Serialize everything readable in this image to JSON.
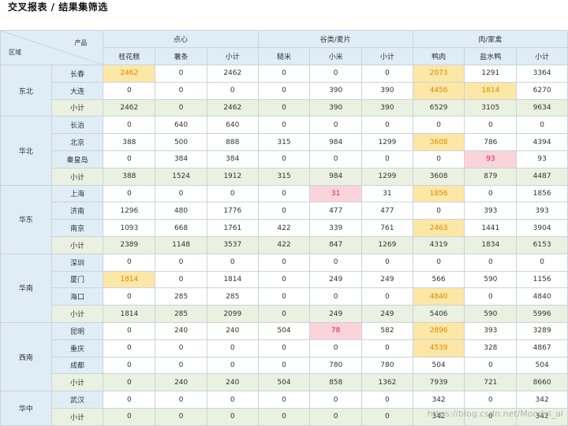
{
  "title": "交叉报表 / 结果集筛选",
  "corner": {
    "product_label": "产品",
    "region_label": "区域"
  },
  "groups": [
    {
      "name": "点心",
      "cols": [
        "桂花糕",
        "薯条",
        "小计"
      ]
    },
    {
      "name": "谷类/麦片",
      "cols": [
        "糙米",
        "小米",
        "小计"
      ]
    },
    {
      "name": "肉/家禽",
      "cols": [
        "鸭肉",
        "盐水鸭",
        "小计"
      ]
    }
  ],
  "regions": [
    {
      "name": "东北",
      "rows": [
        {
          "city": "长春",
          "cells": [
            "2462",
            "0",
            "2462",
            "0",
            "0",
            "0",
            "2073",
            "1291",
            "3364"
          ],
          "hl": {
            "0": "y",
            "6": "y"
          }
        },
        {
          "city": "大连",
          "cells": [
            "0",
            "0",
            "0",
            "0",
            "390",
            "390",
            "4456",
            "1814",
            "6270"
          ],
          "hl": {
            "6": "y",
            "7": "y"
          }
        },
        {
          "city": "小计",
          "sub": true,
          "cells": [
            "2462",
            "0",
            "2462",
            "0",
            "390",
            "390",
            "6529",
            "3105",
            "9634"
          ]
        }
      ]
    },
    {
      "name": "华北",
      "rows": [
        {
          "city": "长治",
          "cells": [
            "0",
            "640",
            "640",
            "0",
            "0",
            "0",
            "0",
            "0",
            "0"
          ]
        },
        {
          "city": "北京",
          "cells": [
            "388",
            "500",
            "888",
            "315",
            "984",
            "1299",
            "3608",
            "786",
            "4394"
          ],
          "hl": {
            "6": "y"
          }
        },
        {
          "city": "秦皇岛",
          "cells": [
            "0",
            "384",
            "384",
            "0",
            "0",
            "0",
            "0",
            "93",
            "93"
          ],
          "hl": {
            "7": "r"
          }
        },
        {
          "city": "小计",
          "sub": true,
          "cells": [
            "388",
            "1524",
            "1912",
            "315",
            "984",
            "1299",
            "3608",
            "879",
            "4487"
          ]
        }
      ]
    },
    {
      "name": "华东",
      "rows": [
        {
          "city": "上海",
          "cells": [
            "0",
            "0",
            "0",
            "0",
            "31",
            "31",
            "1856",
            "0",
            "1856"
          ],
          "hl": {
            "4": "r",
            "6": "y"
          }
        },
        {
          "city": "济南",
          "cells": [
            "1296",
            "480",
            "1776",
            "0",
            "477",
            "477",
            "0",
            "393",
            "393"
          ]
        },
        {
          "city": "南京",
          "cells": [
            "1093",
            "668",
            "1761",
            "422",
            "339",
            "761",
            "2463",
            "1441",
            "3904"
          ],
          "hl": {
            "6": "y"
          }
        },
        {
          "city": "小计",
          "sub": true,
          "cells": [
            "2389",
            "1148",
            "3537",
            "422",
            "847",
            "1269",
            "4319",
            "1834",
            "6153"
          ]
        }
      ]
    },
    {
      "name": "华南",
      "rows": [
        {
          "city": "深圳",
          "cells": [
            "0",
            "0",
            "0",
            "0",
            "0",
            "0",
            "0",
            "0",
            "0"
          ]
        },
        {
          "city": "厦门",
          "cells": [
            "1814",
            "0",
            "1814",
            "0",
            "249",
            "249",
            "566",
            "590",
            "1156"
          ],
          "hl": {
            "0": "y"
          }
        },
        {
          "city": "海口",
          "cells": [
            "0",
            "285",
            "285",
            "0",
            "0",
            "0",
            "4840",
            "0",
            "4840"
          ],
          "hl": {
            "6": "y"
          }
        },
        {
          "city": "小计",
          "sub": true,
          "cells": [
            "1814",
            "285",
            "2099",
            "0",
            "249",
            "249",
            "5406",
            "590",
            "5996"
          ]
        }
      ]
    },
    {
      "name": "西南",
      "rows": [
        {
          "city": "昆明",
          "cells": [
            "0",
            "240",
            "240",
            "504",
            "78",
            "582",
            "2896",
            "393",
            "3289"
          ],
          "hl": {
            "4": "r",
            "6": "y"
          }
        },
        {
          "city": "重庆",
          "cells": [
            "0",
            "0",
            "0",
            "0",
            "0",
            "0",
            "4539",
            "328",
            "4867"
          ],
          "hl": {
            "6": "y"
          }
        },
        {
          "city": "成都",
          "cells": [
            "0",
            "0",
            "0",
            "0",
            "780",
            "780",
            "504",
            "0",
            "504"
          ]
        },
        {
          "city": "小计",
          "sub": true,
          "cells": [
            "0",
            "240",
            "240",
            "504",
            "858",
            "1362",
            "7939",
            "721",
            "8660"
          ]
        }
      ]
    },
    {
      "name": "华中",
      "rows": [
        {
          "city": "武汉",
          "cells": [
            "0",
            "0",
            "0",
            "0",
            "0",
            "0",
            "342",
            "0",
            "342"
          ]
        },
        {
          "city": "小计",
          "sub": true,
          "cells": [
            "0",
            "0",
            "0",
            "0",
            "0",
            "0",
            "342",
            "0",
            "342"
          ]
        }
      ]
    }
  ],
  "watermark": "https://blog.csdn.net/Moodyl_al",
  "colors": {
    "header_bg": "#dfeef6",
    "subtotal_bg": "#eaf1e0",
    "highlight_yellow": "#fde7a6",
    "highlight_red": "#fbd3db"
  }
}
